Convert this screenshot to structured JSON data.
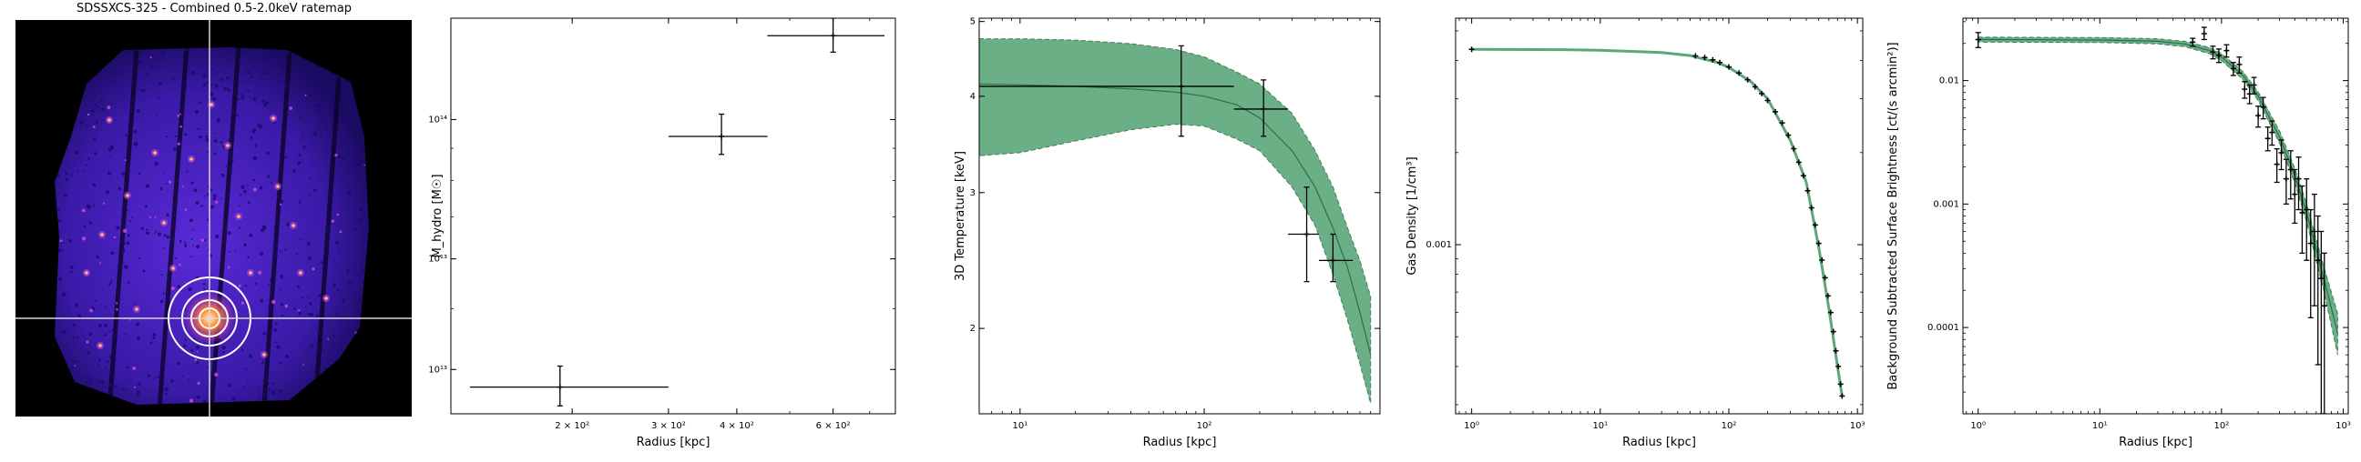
{
  "figure": {
    "image_panel": {
      "title": "SDSSXCS-325 - Combined 0.5-2.0keV ratemap",
      "colors": {
        "background": "#000000",
        "crosshair": "#ffffff",
        "aperture": "#ffffff",
        "source": "#ff7a2a",
        "emission": "#4a22c8"
      }
    }
  },
  "colors": {
    "model_fill": "#5ba77a",
    "model_line": "#2f6f47",
    "data": "#000000"
  },
  "chart_data": [
    {
      "type": "scatter",
      "scale": {
        "x": "log",
        "y": "log"
      },
      "xlabel": "Radius [kpc]",
      "ylabel": "M_hydro [M☉]",
      "xlim": [
        120,
        780
      ],
      "ylim": [
        34000000000000.0,
        145000000000000.0
      ],
      "x_ticks": [
        {
          "v": 200,
          "label": "2 × 10²"
        },
        {
          "v": 300,
          "label": "3 × 10²"
        },
        {
          "v": 400,
          "label": "4 × 10²"
        },
        {
          "v": 600,
          "label": "6 × 10²"
        }
      ],
      "y_ticks": [
        {
          "v": 40000000000000.0,
          "label": "4 × 10¹³"
        },
        {
          "v": 60000000000000.0,
          "label": "6 × 10¹³"
        },
        {
          "v": 100000000000000.0,
          "label": "10¹⁴"
        }
      ],
      "points": [
        {
          "x": 190,
          "y": 37500000000000.0,
          "xerr": [
            130,
            300
          ],
          "yerr": [
            35000000000000.0,
            40500000000000.0
          ]
        },
        {
          "x": 375,
          "y": 94000000000000.0,
          "xerr": [
            300,
            455
          ],
          "yerr": [
            88000000000000.0,
            102000000000000.0
          ]
        },
        {
          "x": 600,
          "y": 136000000000000.0,
          "xerr": [
            455,
            745
          ],
          "yerr": [
            128000000000000.0,
            145000000000000.0
          ]
        }
      ]
    },
    {
      "type": "line",
      "scale": {
        "x": "log",
        "y": "log"
      },
      "xlabel": "Radius [kpc]",
      "ylabel": "3D Temperature [keV]",
      "xlim": [
        6,
        900
      ],
      "ylim": [
        1.55,
        5.05
      ],
      "x_ticks": [
        {
          "v": 10,
          "label": "10¹"
        },
        {
          "v": 100,
          "label": "10²"
        }
      ],
      "y_ticks": [
        {
          "v": 2,
          "label": "2"
        },
        {
          "v": 3,
          "label": "3"
        },
        {
          "v": 4,
          "label": "4"
        },
        {
          "v": 5,
          "label": "5"
        }
      ],
      "model": {
        "x": [
          6,
          10,
          20,
          40,
          70,
          100,
          150,
          200,
          300,
          400,
          500,
          600,
          700,
          800
        ],
        "y": [
          4.15,
          4.14,
          4.12,
          4.09,
          4.05,
          4.0,
          3.9,
          3.75,
          3.4,
          3.05,
          2.7,
          2.4,
          2.1,
          1.85
        ],
        "lower": [
          3.35,
          3.38,
          3.5,
          3.62,
          3.68,
          3.66,
          3.52,
          3.4,
          3.05,
          2.72,
          2.35,
          2.05,
          1.8,
          1.6
        ],
        "upper": [
          4.75,
          4.75,
          4.73,
          4.68,
          4.6,
          4.5,
          4.3,
          4.15,
          3.8,
          3.4,
          3.05,
          2.7,
          2.45,
          2.2
        ]
      },
      "points": [
        {
          "x": 75,
          "y": 4.12,
          "xerr": [
            6,
            145
          ],
          "yerr": [
            3.55,
            4.65
          ]
        },
        {
          "x": 210,
          "y": 3.85,
          "xerr": [
            145,
            285
          ],
          "yerr": [
            3.55,
            4.2
          ]
        },
        {
          "x": 360,
          "y": 2.65,
          "xerr": [
            285,
            420
          ],
          "yerr": [
            2.3,
            3.05
          ]
        },
        {
          "x": 500,
          "y": 2.45,
          "xerr": [
            420,
            640
          ],
          "yerr": [
            2.3,
            2.65
          ]
        }
      ]
    },
    {
      "type": "line",
      "scale": {
        "x": "log",
        "y": "log"
      },
      "xlabel": "Radius [kpc]",
      "ylabel": "Gas Density [1/cm³]",
      "xlim": [
        0.75,
        1100
      ],
      "ylim": [
        0.00028,
        0.0055
      ],
      "x_ticks": [
        {
          "v": 1,
          "label": "10⁰"
        },
        {
          "v": 10,
          "label": "10¹"
        },
        {
          "v": 100,
          "label": "10²"
        },
        {
          "v": 1000,
          "label": "10³"
        }
      ],
      "y_ticks": [
        {
          "v": 0.001,
          "label": "0.001"
        }
      ],
      "model": {
        "x": [
          1,
          5,
          10,
          30,
          50,
          80,
          100,
          150,
          200,
          300,
          400,
          500,
          600,
          700,
          760
        ],
        "y": [
          0.00435,
          0.00434,
          0.00432,
          0.00425,
          0.00415,
          0.00395,
          0.0038,
          0.0034,
          0.003,
          0.0022,
          0.0016,
          0.00098,
          0.00062,
          0.0004,
          0.00032
        ]
      },
      "points": [
        {
          "x": 1,
          "y": 0.00435
        },
        {
          "x": 55,
          "y": 0.00414
        },
        {
          "x": 65,
          "y": 0.00409
        },
        {
          "x": 75,
          "y": 0.00402
        },
        {
          "x": 85,
          "y": 0.00394
        },
        {
          "x": 100,
          "y": 0.00381
        },
        {
          "x": 120,
          "y": 0.00364
        },
        {
          "x": 140,
          "y": 0.00346
        },
        {
          "x": 160,
          "y": 0.00328
        },
        {
          "x": 180,
          "y": 0.00312
        },
        {
          "x": 200,
          "y": 0.00296
        },
        {
          "x": 230,
          "y": 0.00272
        },
        {
          "x": 260,
          "y": 0.0025
        },
        {
          "x": 290,
          "y": 0.00228
        },
        {
          "x": 320,
          "y": 0.00206
        },
        {
          "x": 350,
          "y": 0.00186
        },
        {
          "x": 380,
          "y": 0.00168
        },
        {
          "x": 410,
          "y": 0.0015
        },
        {
          "x": 440,
          "y": 0.00132
        },
        {
          "x": 470,
          "y": 0.00116
        },
        {
          "x": 500,
          "y": 0.00101
        },
        {
          "x": 530,
          "y": 0.00089
        },
        {
          "x": 560,
          "y": 0.00078
        },
        {
          "x": 590,
          "y": 0.00068
        },
        {
          "x": 620,
          "y": 0.0006
        },
        {
          "x": 650,
          "y": 0.00052
        },
        {
          "x": 680,
          "y": 0.00045
        },
        {
          "x": 710,
          "y": 0.0004
        },
        {
          "x": 740,
          "y": 0.00035
        },
        {
          "x": 760,
          "y": 0.00032
        }
      ]
    },
    {
      "type": "line",
      "scale": {
        "x": "log",
        "y": "log"
      },
      "xlabel": "Radius [kpc]",
      "ylabel": "Background Subtracted Surface Brightness [ct/(s arcmin²)]",
      "xlim": [
        0.75,
        1100
      ],
      "ylim": [
        2e-05,
        0.032
      ],
      "x_ticks": [
        {
          "v": 1,
          "label": "10⁰"
        },
        {
          "v": 10,
          "label": "10¹"
        },
        {
          "v": 100,
          "label": "10²"
        },
        {
          "v": 1000,
          "label": "10³"
        }
      ],
      "y_ticks": [
        {
          "v": 0.0001,
          "label": "0.0001"
        },
        {
          "v": 0.001,
          "label": "0.001"
        },
        {
          "v": 0.01,
          "label": "0.01"
        }
      ],
      "model": {
        "x": [
          1,
          10,
          30,
          50,
          80,
          100,
          150,
          200,
          300,
          400,
          500,
          600,
          700,
          900
        ],
        "y": [
          0.0215,
          0.0213,
          0.0208,
          0.0198,
          0.0175,
          0.0155,
          0.011,
          0.0075,
          0.0035,
          0.0017,
          0.00085,
          0.00043,
          0.00024,
          9e-05
        ],
        "lower": [
          0.0205,
          0.0203,
          0.0198,
          0.0188,
          0.0165,
          0.0145,
          0.0102,
          0.0069,
          0.0031,
          0.00148,
          0.00072,
          0.00035,
          0.00019,
          6e-05
        ],
        "upper": [
          0.0225,
          0.0223,
          0.0218,
          0.0208,
          0.0185,
          0.0165,
          0.0118,
          0.0081,
          0.0039,
          0.00195,
          0.001,
          0.00052,
          0.0003,
          0.00013
        ]
      },
      "points": [
        {
          "x": 1,
          "y": 0.0215,
          "yerr": [
            0.0185,
            0.0245
          ]
        },
        {
          "x": 58,
          "y": 0.0205,
          "yerr": [
            0.019,
            0.022
          ]
        },
        {
          "x": 72,
          "y": 0.024,
          "yerr": [
            0.0215,
            0.027
          ]
        },
        {
          "x": 85,
          "y": 0.017,
          "yerr": [
            0.015,
            0.019
          ]
        },
        {
          "x": 95,
          "y": 0.016,
          "yerr": [
            0.014,
            0.018
          ]
        },
        {
          "x": 110,
          "y": 0.0175,
          "yerr": [
            0.0155,
            0.0195
          ]
        },
        {
          "x": 125,
          "y": 0.0125,
          "yerr": [
            0.011,
            0.014
          ]
        },
        {
          "x": 140,
          "y": 0.0135,
          "yerr": [
            0.0115,
            0.0155
          ]
        },
        {
          "x": 155,
          "y": 0.0085,
          "yerr": [
            0.0072,
            0.0098
          ]
        },
        {
          "x": 170,
          "y": 0.0078,
          "yerr": [
            0.0065,
            0.0092
          ]
        },
        {
          "x": 185,
          "y": 0.0092,
          "yerr": [
            0.0078,
            0.0106
          ]
        },
        {
          "x": 200,
          "y": 0.0052,
          "yerr": [
            0.0042,
            0.0062
          ]
        },
        {
          "x": 220,
          "y": 0.0061,
          "yerr": [
            0.0049,
            0.0073
          ]
        },
        {
          "x": 240,
          "y": 0.0034,
          "yerr": [
            0.0027,
            0.0042
          ]
        },
        {
          "x": 260,
          "y": 0.0038,
          "yerr": [
            0.003,
            0.0047
          ]
        },
        {
          "x": 285,
          "y": 0.0021,
          "yerr": [
            0.0015,
            0.0028
          ]
        },
        {
          "x": 310,
          "y": 0.0026,
          "yerr": [
            0.0019,
            0.0033
          ]
        },
        {
          "x": 340,
          "y": 0.0016,
          "yerr": [
            0.001,
            0.0023
          ]
        },
        {
          "x": 370,
          "y": 0.0019,
          "yerr": [
            0.0011,
            0.0027
          ]
        },
        {
          "x": 400,
          "y": 0.0012,
          "yerr": [
            0.0007,
            0.0019
          ]
        },
        {
          "x": 430,
          "y": 0.0016,
          "yerr": [
            0.0009,
            0.0024
          ]
        },
        {
          "x": 460,
          "y": 0.00085,
          "yerr": [
            0.0004,
            0.0014
          ]
        },
        {
          "x": 500,
          "y": 0.0009,
          "yerr": [
            0.00035,
            0.0016
          ]
        },
        {
          "x": 540,
          "y": 0.00048,
          "yerr": [
            0.00012,
            0.0009
          ]
        },
        {
          "x": 580,
          "y": 0.0006,
          "yerr": [
            0.00015,
            0.0012
          ]
        },
        {
          "x": 620,
          "y": 0.00035,
          "yerr": [
            5e-05,
            0.0008
          ]
        },
        {
          "x": 660,
          "y": 0.00025,
          "yerr": [
            2e-05,
            0.0006
          ]
        },
        {
          "x": 700,
          "y": 0.00015,
          "yerr": [
            2e-05,
            0.0004
          ]
        }
      ]
    }
  ]
}
